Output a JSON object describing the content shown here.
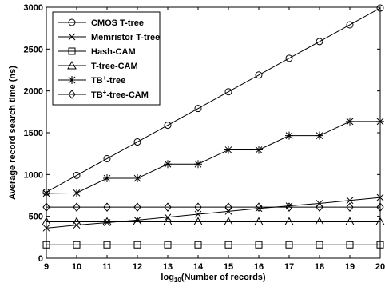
{
  "chart_data": {
    "type": "line",
    "xlabel": "log",
    "xlabel_sub": "10",
    "xlabel_rest": "(Number of records)",
    "ylabel": "Average record search time (ns)",
    "xlim": [
      9,
      20
    ],
    "ylim": [
      0,
      3000
    ],
    "xticks": [
      9,
      10,
      11,
      12,
      13,
      14,
      15,
      16,
      17,
      18,
      19,
      20
    ],
    "yticks": [
      0,
      500,
      1000,
      1500,
      2000,
      2500,
      3000
    ],
    "grid": false,
    "legend_position": "top-left",
    "x": [
      9,
      10,
      11,
      12,
      13,
      14,
      15,
      16,
      17,
      18,
      19,
      20
    ],
    "series": [
      {
        "name": "CMOS T-tree",
        "name_parts": [
          "CMOS T-tree"
        ],
        "marker": "circle",
        "values": [
          790,
          990,
          1190,
          1390,
          1590,
          1790,
          1990,
          2190,
          2390,
          2590,
          2790,
          2990
        ]
      },
      {
        "name": "Memristor T-tree",
        "name_parts": [
          "Memristor T-tree"
        ],
        "marker": "x",
        "values": [
          360,
          395,
          425,
          455,
          490,
          525,
          560,
          595,
          625,
          655,
          690,
          725
        ]
      },
      {
        "name": "Hash-CAM",
        "name_parts": [
          "Hash-CAM"
        ],
        "marker": "square",
        "values": [
          160,
          160,
          160,
          160,
          160,
          160,
          160,
          160,
          160,
          160,
          160,
          160
        ]
      },
      {
        "name": "T-tree-CAM",
        "name_parts": [
          "T-tree-CAM"
        ],
        "marker": "triangle",
        "values": [
          435,
          435,
          435,
          435,
          435,
          435,
          435,
          435,
          435,
          435,
          435,
          435
        ]
      },
      {
        "name": "TB+-tree",
        "name_parts": [
          "TB",
          "+",
          "-tree"
        ],
        "marker": "star",
        "values": [
          775,
          780,
          955,
          955,
          1125,
          1125,
          1295,
          1295,
          1465,
          1465,
          1635,
          1635
        ]
      },
      {
        "name": "TB+-tree-CAM",
        "name_parts": [
          "TB",
          "+",
          "-tree-CAM"
        ],
        "marker": "diamond",
        "values": [
          610,
          610,
          610,
          610,
          610,
          610,
          610,
          610,
          610,
          610,
          610,
          610
        ]
      }
    ]
  }
}
